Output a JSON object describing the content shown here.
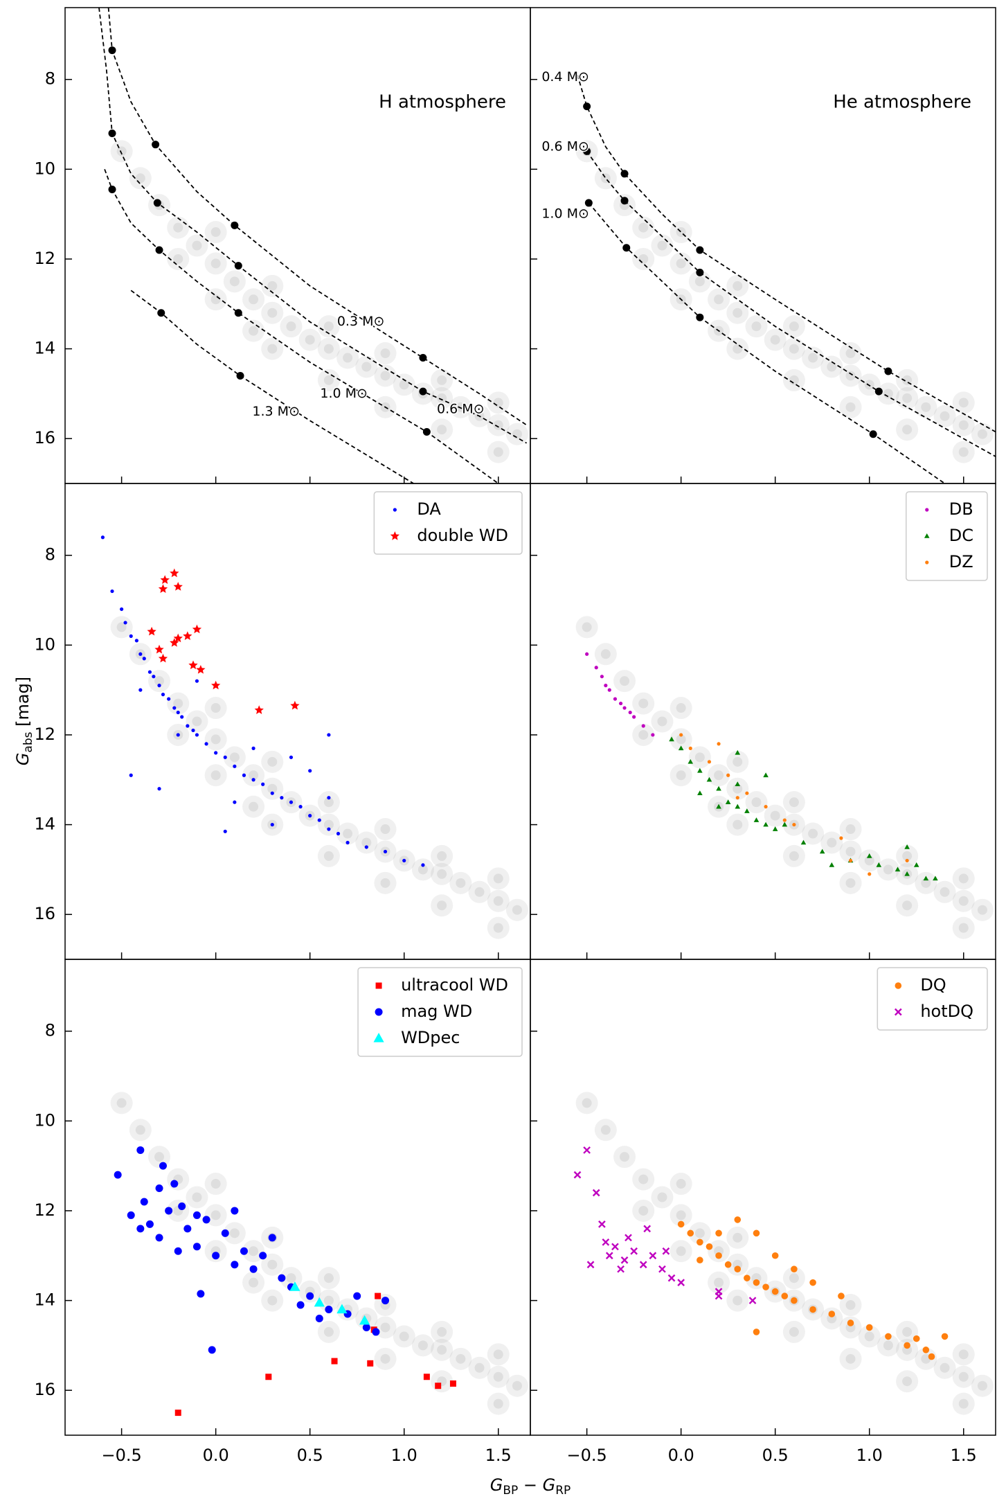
{
  "xlabel": [
    "G",
    "BP",
    " − G",
    "RP"
  ],
  "ylabel": [
    "G",
    "abs",
    " [mag]"
  ],
  "background": {
    "x": [
      -0.5,
      -0.4,
      -0.3,
      -0.2,
      -0.1,
      0,
      0.1,
      0.2,
      0.3,
      0.4,
      0.5,
      0.6,
      0.7,
      0.8,
      0.9,
      1.0,
      1.1,
      1.2,
      1.3,
      1.4,
      1.5,
      1.6,
      0,
      0.3,
      0.6,
      0.9,
      1.2,
      1.5,
      0,
      0.3,
      0.6,
      0.9,
      1.2,
      1.5,
      -0.2,
      0.2
    ],
    "values": [
      9.6,
      10.2,
      10.8,
      11.3,
      11.7,
      12.1,
      12.5,
      12.9,
      13.2,
      13.5,
      13.8,
      14.0,
      14.2,
      14.4,
      14.6,
      14.8,
      15.0,
      15.1,
      15.3,
      15.5,
      15.7,
      15.9,
      11.4,
      12.6,
      13.5,
      14.1,
      14.7,
      15.2,
      12.9,
      14.0,
      14.7,
      15.3,
      15.8,
      16.3,
      12.0,
      13.6
    ]
  },
  "chart_data": [
    {
      "type": "scatter",
      "annotation": "H atmosphere",
      "xlim": [
        -0.8,
        1.67
      ],
      "ylim": [
        17.0,
        6.4
      ],
      "xticks": [
        -0.5,
        0,
        0.5,
        1,
        1.5
      ],
      "yticks": [
        8,
        10,
        12,
        14,
        16
      ],
      "show_xtick_labels": false,
      "show_ytick_labels": true,
      "lines": [
        {
          "label": "0.3 M⊙",
          "color": "#000000",
          "x": [
            -0.57,
            -0.55,
            -0.45,
            -0.32,
            -0.1,
            0.1,
            0.5,
            1.1,
            1.4,
            1.65
          ],
          "values": [
            6.4,
            7.35,
            8.5,
            9.45,
            10.5,
            11.25,
            12.6,
            14.2,
            15.0,
            15.7
          ],
          "marker_x": [
            -0.55,
            -0.32,
            0.1,
            1.1
          ],
          "marker_values": [
            7.35,
            9.45,
            11.25,
            14.2
          ]
        },
        {
          "label": "0.6 M⊙",
          "color": "#000000",
          "x": [
            -0.62,
            -0.58,
            -0.55,
            -0.45,
            -0.31,
            -0.1,
            0.12,
            0.5,
            1.1,
            1.4,
            1.65
          ],
          "values": [
            6.4,
            7.8,
            9.2,
            10.1,
            10.75,
            11.4,
            12.15,
            13.4,
            14.95,
            15.5,
            16.1
          ],
          "marker_x": [
            -0.55,
            -0.31,
            0.12,
            1.1
          ],
          "marker_values": [
            9.2,
            10.75,
            12.15,
            14.95
          ]
        },
        {
          "label": "1.0 M⊙",
          "color": "#000000",
          "x": [
            -0.59,
            -0.55,
            -0.45,
            -0.3,
            -0.1,
            0.12,
            0.5,
            1.12,
            1.5
          ],
          "values": [
            10.0,
            10.45,
            11.2,
            11.8,
            12.5,
            13.2,
            14.3,
            15.85,
            17.0
          ],
          "marker_x": [
            -0.55,
            -0.3,
            0.12,
            1.12
          ],
          "marker_values": [
            10.45,
            11.8,
            13.2,
            15.85
          ]
        },
        {
          "label": "1.3 M⊙",
          "color": "#000000",
          "x": [
            -0.45,
            -0.29,
            -0.1,
            0.13,
            0.5,
            1.05
          ],
          "values": [
            12.7,
            13.2,
            13.9,
            14.6,
            15.6,
            17.0
          ],
          "marker_x": [
            -0.29,
            0.13
          ],
          "marker_values": [
            13.2,
            14.6
          ]
        }
      ],
      "series": []
    },
    {
      "type": "scatter",
      "annotation": "He atmosphere",
      "xlim": [
        -0.8,
        1.67
      ],
      "ylim": [
        17.0,
        6.4
      ],
      "xticks": [
        -0.5,
        0,
        0.5,
        1,
        1.5
      ],
      "yticks": [
        8,
        10,
        12,
        14,
        16
      ],
      "show_xtick_labels": false,
      "show_ytick_labels": false,
      "lines": [
        {
          "label": "0.4 M⊙",
          "color": "#000000",
          "x": [
            -0.55,
            -0.5,
            -0.4,
            -0.3,
            -0.1,
            0.1,
            0.5,
            1.1,
            1.67
          ],
          "values": [
            7.9,
            8.6,
            9.5,
            10.1,
            11.0,
            11.8,
            12.9,
            14.5,
            15.85
          ],
          "marker_x": [
            -0.5,
            -0.3,
            0.1,
            1.1
          ],
          "marker_values": [
            8.6,
            10.1,
            11.8,
            14.5
          ]
        },
        {
          "label": "0.6 M⊙",
          "color": "#000000",
          "x": [
            -0.5,
            -0.4,
            -0.3,
            -0.1,
            0.1,
            0.5,
            1.05,
            1.67
          ],
          "values": [
            9.6,
            10.2,
            10.7,
            11.5,
            12.3,
            13.5,
            14.95,
            16.4
          ],
          "marker_x": [
            -0.5,
            -0.3,
            0.1,
            1.05
          ],
          "marker_values": [
            9.6,
            10.7,
            12.3,
            14.95
          ]
        },
        {
          "label": "1.0 M⊙",
          "color": "#000000",
          "x": [
            -0.49,
            -0.4,
            -0.29,
            -0.1,
            0.1,
            0.5,
            1.02,
            1.4
          ],
          "values": [
            10.75,
            11.2,
            11.75,
            12.5,
            13.3,
            14.5,
            15.9,
            17.0
          ],
          "marker_x": [
            -0.49,
            -0.29,
            0.1,
            1.02
          ],
          "marker_values": [
            10.75,
            11.75,
            13.3,
            15.9
          ]
        }
      ],
      "series": []
    },
    {
      "type": "scatter",
      "legend": "upper right",
      "xlim": [
        -0.8,
        1.67
      ],
      "ylim": [
        17.0,
        6.4
      ],
      "xticks": [
        -0.5,
        0,
        0.5,
        1,
        1.5
      ],
      "yticks": [
        8,
        10,
        12,
        14,
        16
      ],
      "show_xtick_labels": false,
      "show_ytick_labels": true,
      "series": [
        {
          "name": "DA",
          "color": "#0000ff",
          "marker": "dot",
          "x": [
            -0.6,
            -0.55,
            -0.5,
            -0.48,
            -0.45,
            -0.42,
            -0.4,
            -0.38,
            -0.35,
            -0.33,
            -0.3,
            -0.28,
            -0.25,
            -0.22,
            -0.2,
            -0.18,
            -0.15,
            -0.12,
            -0.1,
            -0.05,
            0,
            0.05,
            0.1,
            0.15,
            0.2,
            0.25,
            0.3,
            0.35,
            0.4,
            0.45,
            0.5,
            0.55,
            0.6,
            0.65,
            0.7,
            0.8,
            0.9,
            1.0,
            1.1,
            -0.45,
            -0.3,
            -0.2,
            0.4,
            0.6,
            -0.4,
            0.1,
            0.3,
            0.5,
            -0.1,
            0.2,
            0.6,
            0.05
          ],
          "values": [
            7.6,
            8.8,
            9.2,
            9.5,
            9.8,
            9.9,
            10.2,
            10.3,
            10.6,
            10.7,
            10.9,
            11.1,
            11.2,
            11.4,
            11.5,
            11.6,
            11.8,
            11.9,
            12.0,
            12.2,
            12.4,
            12.5,
            12.7,
            12.9,
            13.0,
            13.1,
            13.3,
            13.4,
            13.5,
            13.6,
            13.8,
            13.9,
            14.1,
            14.2,
            14.4,
            14.5,
            14.6,
            14.8,
            14.9,
            12.9,
            13.2,
            12.0,
            12.5,
            13.4,
            11.0,
            13.5,
            14.0,
            12.8,
            10.8,
            12.3,
            12.0,
            14.15
          ]
        },
        {
          "name": "double WD",
          "color": "#ff0000",
          "marker": "star",
          "x": [
            -0.28,
            -0.27,
            -0.22,
            -0.2,
            -0.34,
            -0.3,
            -0.28,
            -0.22,
            -0.2,
            -0.15,
            -0.1,
            -0.12,
            -0.08,
            0.0,
            0.23,
            0.42
          ],
          "values": [
            8.75,
            8.55,
            8.4,
            8.7,
            9.7,
            10.1,
            10.3,
            9.95,
            9.85,
            9.8,
            9.65,
            10.45,
            10.55,
            10.9,
            11.45,
            11.35
          ]
        }
      ]
    },
    {
      "type": "scatter",
      "legend": "upper right",
      "xlim": [
        -0.8,
        1.67
      ],
      "ylim": [
        17.0,
        6.4
      ],
      "xticks": [
        -0.5,
        0,
        0.5,
        1,
        1.5
      ],
      "yticks": [
        8,
        10,
        12,
        14,
        16
      ],
      "show_xtick_labels": false,
      "show_ytick_labels": false,
      "series": [
        {
          "name": "DB",
          "color": "#bf00bf",
          "marker": "dot",
          "x": [
            -0.5,
            -0.45,
            -0.42,
            -0.4,
            -0.38,
            -0.35,
            -0.32,
            -0.3,
            -0.27,
            -0.25,
            -0.2,
            -0.15
          ],
          "values": [
            10.2,
            10.5,
            10.7,
            10.9,
            11.0,
            11.2,
            11.3,
            11.4,
            11.5,
            11.6,
            11.8,
            12.0
          ]
        },
        {
          "name": "DC",
          "color": "#008000",
          "marker": "triangle-small",
          "x": [
            -0.05,
            0,
            0.05,
            0.1,
            0.15,
            0.2,
            0.25,
            0.3,
            0.35,
            0.4,
            0.45,
            0.5,
            0.55,
            0.1,
            0.2,
            0.3,
            0.45,
            0.3,
            0.8,
            0.9,
            1.0,
            1.2,
            1.25,
            1.3,
            1.35,
            1.05,
            0.65,
            0.75,
            1.15,
            1.2
          ],
          "values": [
            12.1,
            12.3,
            12.6,
            12.8,
            13.0,
            13.2,
            13.5,
            13.6,
            13.7,
            13.9,
            14.0,
            14.1,
            14.0,
            13.3,
            13.6,
            13.1,
            12.9,
            12.4,
            14.9,
            14.8,
            14.7,
            14.5,
            14.9,
            15.2,
            15.2,
            14.9,
            14.4,
            14.6,
            15.0,
            15.1
          ]
        },
        {
          "name": "DZ",
          "color": "#ff7f0e",
          "marker": "dot",
          "x": [
            0,
            0.05,
            0.15,
            0.25,
            0.35,
            0.45,
            0.55,
            0.6,
            0.85,
            0.9,
            1.0,
            1.2,
            0.3,
            0.2
          ],
          "values": [
            12.0,
            12.3,
            12.6,
            12.9,
            13.3,
            13.6,
            13.9,
            14.0,
            14.3,
            14.8,
            15.1,
            14.8,
            13.4,
            12.2
          ]
        }
      ]
    },
    {
      "type": "scatter",
      "legend": "upper right",
      "xlim": [
        -0.8,
        1.67
      ],
      "ylim": [
        17.0,
        6.4
      ],
      "xticks": [
        {
          "value": -0.5,
          "label": "−0.5"
        },
        {
          "value": 0,
          "label": "0.0"
        },
        0.5,
        {
          "value": 1,
          "label": "1.0"
        },
        1.5
      ],
      "yticks": [
        8,
        10,
        12,
        14,
        16
      ],
      "show_xtick_labels": true,
      "show_ytick_labels": true,
      "series": [
        {
          "name": "ultracool WD",
          "color": "#ff0000",
          "marker": "square",
          "x": [
            -0.2,
            0.28,
            0.63,
            0.82,
            0.84,
            0.86,
            1.12,
            1.18,
            1.26
          ],
          "values": [
            16.5,
            15.7,
            15.35,
            15.4,
            14.65,
            13.9,
            15.7,
            15.9,
            15.85
          ]
        },
        {
          "name": "mag WD",
          "color": "#0000ff",
          "marker": "circle",
          "x": [
            -0.52,
            -0.45,
            -0.4,
            -0.38,
            -0.35,
            -0.3,
            -0.3,
            -0.28,
            -0.25,
            -0.22,
            -0.2,
            -0.18,
            -0.15,
            -0.1,
            -0.05,
            0,
            0.05,
            0.1,
            0.15,
            0.2,
            0.25,
            0.3,
            0.35,
            0.4,
            0.45,
            0.5,
            0.55,
            0.6,
            0.7,
            0.8,
            0.85,
            -0.08,
            -0.02,
            -0.1,
            0.1,
            -0.4,
            0.9,
            0.75
          ],
          "values": [
            11.2,
            12.1,
            10.65,
            11.8,
            12.3,
            11.5,
            12.6,
            11.0,
            12.0,
            11.4,
            12.9,
            11.9,
            12.4,
            12.8,
            12.2,
            13.0,
            12.5,
            13.2,
            12.9,
            13.3,
            13.0,
            12.6,
            13.5,
            13.7,
            14.1,
            13.9,
            14.4,
            14.2,
            14.3,
            14.6,
            14.7,
            13.85,
            15.1,
            12.1,
            12.0,
            12.4,
            14.0,
            13.9
          ]
        },
        {
          "name": "WDpec",
          "color": "#00ffff",
          "marker": "triangle",
          "x": [
            0.42,
            0.55,
            0.67,
            0.79
          ],
          "values": [
            13.7,
            14.05,
            14.2,
            14.45
          ]
        }
      ]
    },
    {
      "type": "scatter",
      "legend": "upper right",
      "xlim": [
        -0.8,
        1.67
      ],
      "ylim": [
        17.0,
        6.4
      ],
      "xticks": [
        {
          "value": -0.5,
          "label": "−0.5"
        },
        {
          "value": 0,
          "label": "0.0"
        },
        0.5,
        {
          "value": 1,
          "label": "1.0"
        },
        1.5
      ],
      "yticks": [
        8,
        10,
        12,
        14,
        16
      ],
      "show_xtick_labels": true,
      "show_ytick_labels": false,
      "series": [
        {
          "name": "DQ",
          "color": "#ff7f0e",
          "marker": "circle-small",
          "x": [
            0,
            0.05,
            0.1,
            0.15,
            0.2,
            0.25,
            0.3,
            0.35,
            0.4,
            0.45,
            0.5,
            0.55,
            0.6,
            0.7,
            0.8,
            0.9,
            1.0,
            1.1,
            1.2,
            1.3,
            1.4,
            1.33,
            0.4,
            0.3,
            0.4,
            0.5,
            0.7,
            0.85,
            0.2,
            0.1,
            1.25,
            0.6
          ],
          "values": [
            12.3,
            12.5,
            12.7,
            12.8,
            13.0,
            13.2,
            13.3,
            13.5,
            13.6,
            13.7,
            13.8,
            13.9,
            14.0,
            14.2,
            14.3,
            14.5,
            14.6,
            14.8,
            15.0,
            15.1,
            14.8,
            15.25,
            14.7,
            12.2,
            12.5,
            13.0,
            13.6,
            13.9,
            12.5,
            13.1,
            14.85,
            13.3
          ]
        },
        {
          "name": "hotDQ",
          "color": "#bf00bf",
          "marker": "x",
          "x": [
            -0.55,
            -0.5,
            -0.45,
            -0.42,
            -0.4,
            -0.38,
            -0.35,
            -0.3,
            -0.28,
            -0.25,
            -0.2,
            -0.15,
            -0.1,
            -0.05,
            -0.18,
            -0.48,
            -0.08,
            0.0,
            0.2,
            0.38,
            0.2,
            -0.32
          ],
          "values": [
            11.2,
            10.65,
            11.6,
            12.3,
            12.7,
            13.0,
            12.8,
            13.1,
            12.6,
            12.9,
            13.2,
            13.0,
            13.3,
            13.5,
            12.4,
            13.2,
            12.9,
            13.6,
            13.8,
            14.0,
            13.9,
            13.3
          ]
        }
      ]
    }
  ]
}
